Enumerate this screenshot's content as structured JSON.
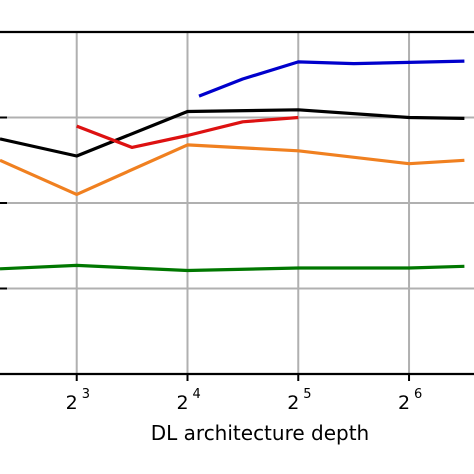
{
  "chart_data": {
    "type": "line",
    "xlabel": "DL architecture depth",
    "ylabel": "",
    "x_scale": "log2",
    "x_ticks": [
      {
        "value": 8,
        "base": "2",
        "exp": "3"
      },
      {
        "value": 16,
        "base": "2",
        "exp": "4"
      },
      {
        "value": 32,
        "base": "2",
        "exp": "5"
      },
      {
        "value": 64,
        "base": "2",
        "exp": "6"
      }
    ],
    "y_ticks": [
      0,
      1,
      2,
      3,
      4
    ],
    "y_tick_labels_visible": false,
    "xlim": [
      4.95,
      96.1
    ],
    "ylim": [
      0,
      4
    ],
    "grid": true,
    "series": [
      {
        "color": "#0000cc",
        "points": [
          [
            17.2,
            3.25
          ],
          [
            22.6,
            3.45
          ],
          [
            32,
            3.65
          ],
          [
            45.3,
            3.63
          ],
          [
            90.5,
            3.66
          ]
        ]
      },
      {
        "color": "#000000",
        "points": [
          [
            4.95,
            2.75
          ],
          [
            8,
            2.55
          ],
          [
            16,
            3.07
          ],
          [
            32,
            3.09
          ],
          [
            64,
            3.0
          ],
          [
            90.5,
            2.99
          ]
        ]
      },
      {
        "color": "#dd1111",
        "points": [
          [
            8,
            2.9
          ],
          [
            11.3,
            2.65
          ],
          [
            16,
            2.79
          ],
          [
            22.6,
            2.95
          ],
          [
            32,
            3.0
          ]
        ]
      },
      {
        "color": "#f08020",
        "points": [
          [
            4.95,
            2.5
          ],
          [
            8,
            2.1
          ],
          [
            16,
            2.68
          ],
          [
            32,
            2.61
          ],
          [
            64,
            2.46
          ],
          [
            90.5,
            2.5
          ]
        ]
      },
      {
        "color": "#007700",
        "points": [
          [
            4.95,
            1.23
          ],
          [
            8,
            1.27
          ],
          [
            16,
            1.21
          ],
          [
            32,
            1.24
          ],
          [
            64,
            1.24
          ],
          [
            90.5,
            1.26
          ]
        ]
      }
    ]
  }
}
